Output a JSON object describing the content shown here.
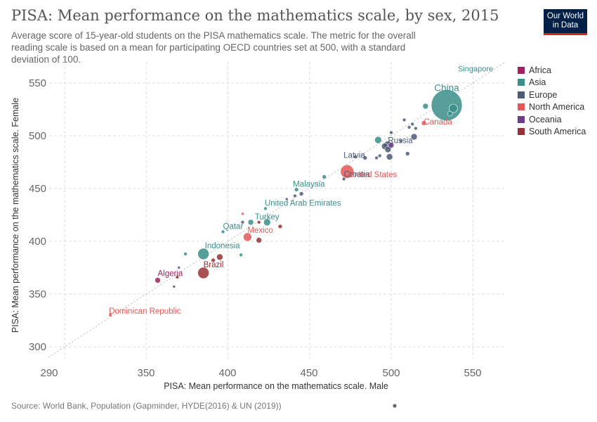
{
  "header": {
    "title": "PISA: Mean performance on the mathematics scale, by sex, 2015",
    "subtitle": "Average score of 15-year-old students on the PISA mathematics scale. The metric for the overall reading scale is based on a mean for participating OECD countries set at 500, with a standard deviation of 100.",
    "logo_line1": "Our World",
    "logo_line2": "in Data",
    "logo_bg": "#002147",
    "logo_accent": "#ce261e"
  },
  "footer": {
    "source": "Source: World Bank, Population (Gapminder, HYDE(2016) & UN (2019))"
  },
  "legend": [
    {
      "name": "Africa",
      "color": "#a2205f"
    },
    {
      "name": "Asia",
      "color": "#3b8e89"
    },
    {
      "name": "Europe",
      "color": "#4d5b77"
    },
    {
      "name": "North America",
      "color": "#e45756"
    },
    {
      "name": "Oceania",
      "color": "#6c3e8a"
    },
    {
      "name": "South America",
      "color": "#993236"
    }
  ],
  "chart_data": {
    "type": "scatter",
    "title": "PISA: Mean performance on the mathematics scale, by sex, 2015",
    "xlabel": "PISA: Mean performance on the mathematics scale. Male",
    "ylabel": "PISA: Mean performance on the mathematics scale. Female",
    "xlim": [
      290,
      570
    ],
    "ylim": [
      293,
      567
    ],
    "xticks": [
      290,
      350,
      400,
      450,
      500,
      550
    ],
    "yticks": [
      300,
      350,
      400,
      450,
      500,
      550
    ],
    "grid": true,
    "reference_line": "y = x (dotted)",
    "legend_position": "right",
    "size_encoding": "population",
    "points": [
      {
        "label": "China",
        "region": "Asia",
        "x": 534,
        "y": 529,
        "size": 22,
        "label_size": 13.5
      },
      {
        "label": "Singapore",
        "region": "Asia",
        "x": 565,
        "y": 563,
        "size": 0,
        "label_size": 11
      },
      {
        "label": "Canada",
        "region": "North America",
        "x": 520,
        "y": 512,
        "size": 3.5
      },
      {
        "label": "Russia",
        "region": "Europe",
        "x": 498,
        "y": 491,
        "size": 6
      },
      {
        "label": "Latvia",
        "region": "Europe",
        "x": 484,
        "y": 479,
        "size": 3
      },
      {
        "label": "United States",
        "region": "North America",
        "x": 473,
        "y": 466,
        "size": 9.5
      },
      {
        "label": "Croatia",
        "region": "Europe",
        "x": 471,
        "y": 459,
        "size": 2.5
      },
      {
        "label": "Malaysia",
        "region": "Asia",
        "x": 442,
        "y": 449,
        "size": 3
      },
      {
        "label": "United Arab Emirates",
        "region": "Asia",
        "x": 423,
        "y": 431,
        "size": 2.5
      },
      {
        "label": "Turkey",
        "region": "Asia",
        "x": 424,
        "y": 418,
        "size": 5
      },
      {
        "label": "Qatar",
        "region": "Asia",
        "x": 397,
        "y": 409,
        "size": 2.5
      },
      {
        "label": "Mexico",
        "region": "North America",
        "x": 412,
        "y": 404,
        "size": 6
      },
      {
        "label": "Indonesia",
        "region": "Asia",
        "x": 385,
        "y": 388,
        "size": 8
      },
      {
        "label": "Brazil",
        "region": "South America",
        "x": 385,
        "y": 370,
        "size": 8
      },
      {
        "label": "Algeria",
        "region": "Africa",
        "x": 357,
        "y": 363,
        "size": 4
      },
      {
        "label": "Dominican Republic",
        "region": "North America",
        "x": 328,
        "y": 330,
        "size": 2.5
      },
      {
        "label": "",
        "region": "Asia",
        "x": 538,
        "y": 526,
        "size": 6
      },
      {
        "label": "",
        "region": "Asia",
        "x": 536,
        "y": 521,
        "size": 3.5
      },
      {
        "label": "",
        "region": "Asia",
        "x": 521,
        "y": 528,
        "size": 4
      },
      {
        "label": "",
        "region": "Europe",
        "x": 508,
        "y": 515,
        "size": 2.5
      },
      {
        "label": "",
        "region": "Europe",
        "x": 513,
        "y": 511,
        "size": 2.5
      },
      {
        "label": "",
        "region": "Europe",
        "x": 515,
        "y": 507,
        "size": 2.5
      },
      {
        "label": "",
        "region": "Europe",
        "x": 511,
        "y": 508,
        "size": 2.5
      },
      {
        "label": "",
        "region": "Europe",
        "x": 500,
        "y": 503,
        "size": 2.5
      },
      {
        "label": "",
        "region": "Europe",
        "x": 514,
        "y": 499,
        "size": 4.5
      },
      {
        "label": "",
        "region": "Europe",
        "x": 506,
        "y": 495,
        "size": 2.5
      },
      {
        "label": "",
        "region": "Asia",
        "x": 492,
        "y": 496,
        "size": 5
      },
      {
        "label": "",
        "region": "Europe",
        "x": 496,
        "y": 490,
        "size": 4.5
      },
      {
        "label": "",
        "region": "Europe",
        "x": 498,
        "y": 487,
        "size": 4.5
      },
      {
        "label": "",
        "region": "Oceania",
        "x": 500,
        "y": 491,
        "size": 4
      },
      {
        "label": "",
        "region": "Europe",
        "x": 510,
        "y": 483,
        "size": 3
      },
      {
        "label": "",
        "region": "Europe",
        "x": 493,
        "y": 481,
        "size": 2.5
      },
      {
        "label": "",
        "region": "Europe",
        "x": 491,
        "y": 479,
        "size": 2.5
      },
      {
        "label": "",
        "region": "Europe",
        "x": 499,
        "y": 480,
        "size": 4.5
      },
      {
        "label": "",
        "region": "Europe",
        "x": 478,
        "y": 480,
        "size": 2.5
      },
      {
        "label": "",
        "region": "Asia",
        "x": 459,
        "y": 461,
        "size": 3
      },
      {
        "label": "",
        "region": "Europe",
        "x": 445,
        "y": 445,
        "size": 3
      },
      {
        "label": "",
        "region": "Europe",
        "x": 441,
        "y": 443,
        "size": 2.5
      },
      {
        "label": "",
        "region": "Europe",
        "x": 436,
        "y": 440,
        "size": 2
      },
      {
        "label": "",
        "region": "South America",
        "x": 432,
        "y": 414,
        "size": 3
      },
      {
        "label": "",
        "region": "North America",
        "x": 409,
        "y": 426,
        "size": 2
      },
      {
        "label": "",
        "region": "Europe",
        "x": 409,
        "y": 418,
        "size": 2.5
      },
      {
        "label": "",
        "region": "Asia",
        "x": 414,
        "y": 418,
        "size": 4
      },
      {
        "label": "",
        "region": "South America",
        "x": 419,
        "y": 418,
        "size": 2.5
      },
      {
        "label": "",
        "region": "South America",
        "x": 419,
        "y": 401,
        "size": 4
      },
      {
        "label": "",
        "region": "Asia",
        "x": 408,
        "y": 387,
        "size": 2.5
      },
      {
        "label": "",
        "region": "Asia",
        "x": 374,
        "y": 388,
        "size": 2.5
      },
      {
        "label": "",
        "region": "South America",
        "x": 395,
        "y": 385,
        "size": 4.5
      },
      {
        "label": "",
        "region": "South America",
        "x": 391,
        "y": 382,
        "size": 3
      },
      {
        "label": "",
        "region": "Europe",
        "x": 370,
        "y": 375,
        "size": 2
      },
      {
        "label": "",
        "region": "South America",
        "x": 369,
        "y": 366,
        "size": 2.5
      },
      {
        "label": "",
        "region": "Europe",
        "x": 367,
        "y": 357,
        "size": 2
      }
    ]
  }
}
